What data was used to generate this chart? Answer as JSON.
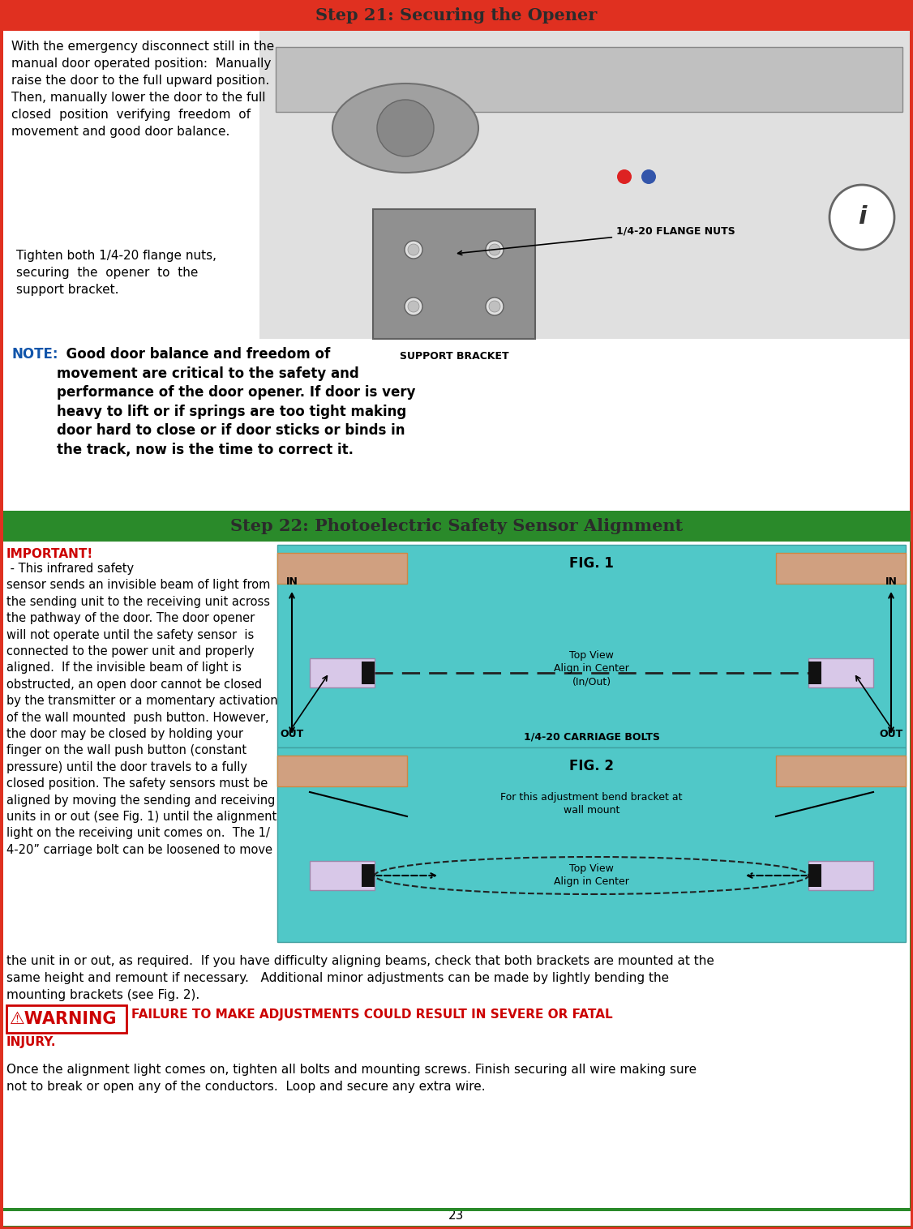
{
  "title_step21": "Step 21: Securing the Opener",
  "title_step22": "Step 22: Photoelectric Safety Sensor Alignment",
  "title_color": "#2B2B2B",
  "header_bg_step21": "#E03020",
  "header_bg_step22": "#2A8A2A",
  "page_bg": "#FFFFFF",
  "step21_left_para1": "With the emergency disconnect still in the\nmanual door operated position:  Manually\nraise the door to the full upward position.\nThen, manually lower the door to the full\nclosed  position  verifying  freedom  of\nmovement and good door balance.",
  "step21_callout": "Tighten both 1/4-20 flange nuts,\nsecuring  the  opener  to  the\nsupport bracket.",
  "note_bold": "NOTE:",
  "note_color": "#1155AA",
  "note_rest": "  Good door balance and freedom of\nmovement are critical to the safety and\nperformance of the door opener. If door is very\nheavy to lift or if springs are too tight making\ndoor hard to close or if door sticks or binds in\nthe track, now is the time to correct it.",
  "label_flange": "1/4-20 FLANGE NUTS",
  "label_bracket": "SUPPORT BRACKET",
  "important_label": "IMPORTANT!",
  "important_color": "#CC0000",
  "step22_text_col1_line1": "IMPORTANT!",
  "step22_col1_body": " -  This infrared safety\nsensor sends an invisible beam of light from\nthe sending unit to the receiving unit across\nthe pathway of the door. The door opener\nwill not operate until the safety sensor  is\nconnected to the power unit and properly\naligned.  If the invisible beam of light is\nobstructed, an open door cannot be closed\nby the transmitter or a momentary activation\nof the wall mounted  push button. However,\nthe door may be closed by holding your\nfinger on the wall push button (constant\npressure) until the door travels to a fully\nclosed position. The safety sensors must be\naligned by moving the sending and receiving\nunits in or out (see Fig. 1) until the alignment\nlight on the receiving unit comes on.  The 1/\n4-20” carriage bolt can be loosened to move",
  "step22_bottom_para": "the unit in or out, as required.  If you have difficulty aligning beams, check that both brackets are mounted at the\nsame height and remount if necessary.   Additional minor adjustments can be made by lightly bending the\nmounting brackets (see Fig. 2).",
  "warning_box_text": "⚠WARNING",
  "warning_rest": " FAILURE TO MAKE ADJUSTMENTS COULD RESULT IN SEVERE OR FATAL\nINJURY.",
  "warning_color": "#CC0000",
  "warning_box_border": "#CC0000",
  "final_para": "Once the alignment light comes on, tighten all bolts and mounting screws. Finish securing all wire making sure\nnot to break or open any of the conductors.  Loop and secure any extra wire.",
  "fig1_title": "FIG. 1",
  "fig2_title": "FIG. 2",
  "fig1_topview": "Top View\nAlign in Center\n(In/Out)",
  "fig1_carriage": "1/4-20 CARRIAGE BOLTS",
  "fig2_bend": "For this adjustment bend bracket at\nwall mount",
  "fig2_topview": "Top View\nAlign in Center",
  "fig_bg": "#50C8C8",
  "fig_sensor_bg": "#D0A080",
  "fig_sensor_dark": "#CC8844",
  "page_num": "23",
  "red": "#E03020",
  "green": "#2A8A2A",
  "white": "#FFFFFF",
  "black": "#000000"
}
